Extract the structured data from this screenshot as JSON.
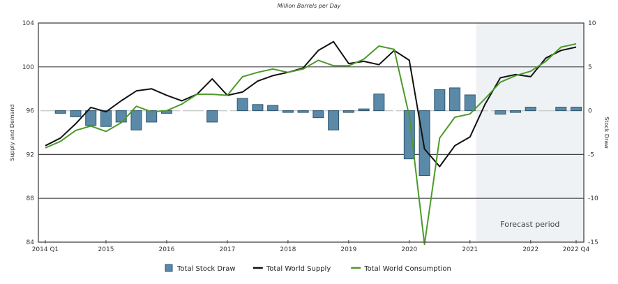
{
  "chart_data": {
    "type": "bar+line",
    "subtitle": "Million Barrels per Day",
    "ylabel_left": "Supply and Demand",
    "ylabel_right": "Stock Draw",
    "ylim_left": [
      84,
      104
    ],
    "ylim_right": [
      -15,
      10
    ],
    "yticks_left": [
      "84",
      "88",
      "92",
      "96",
      "100",
      "104"
    ],
    "yticks_right": [
      "-15",
      "-10",
      "-5",
      "0",
      "5",
      "10"
    ],
    "xtick_labels": [
      "2014 Q1",
      "2015",
      "2016",
      "2017",
      "2018",
      "2019",
      "2020",
      "2021",
      "2022",
      "2022 Q4"
    ],
    "xtick_quarter_index": [
      0,
      4,
      8,
      12,
      16,
      20,
      24,
      28,
      32,
      35
    ],
    "quarters": [
      "2014 Q1",
      "2014 Q2",
      "2014 Q3",
      "2014 Q4",
      "2015 Q1",
      "2015 Q2",
      "2015 Q3",
      "2015 Q4",
      "2016 Q1",
      "2016 Q2",
      "2016 Q3",
      "2016 Q4",
      "2017 Q1",
      "2017 Q2",
      "2017 Q3",
      "2017 Q4",
      "2018 Q1",
      "2018 Q2",
      "2018 Q3",
      "2018 Q4",
      "2019 Q1",
      "2019 Q2",
      "2019 Q3",
      "2019 Q4",
      "2020 Q1",
      "2020 Q2",
      "2020 Q3",
      "2020 Q4",
      "2021 Q1",
      "2021 Q2",
      "2021 Q3",
      "2021 Q4",
      "2022 Q1",
      "2022 Q2",
      "2022 Q3",
      "2022 Q4"
    ],
    "forecast_start_index": 29,
    "forecast_label": "Forecast period",
    "series": [
      {
        "name": "Total Stock Draw",
        "axis": "right",
        "kind": "bar",
        "color": "#5b8aa8",
        "values": [
          0,
          -0.3,
          -0.7,
          -1.7,
          -1.8,
          -1.3,
          -2.2,
          -1.3,
          -0.3,
          0,
          0,
          -1.3,
          0,
          1.4,
          0.7,
          0.6,
          -0.1,
          -0.2,
          -0.8,
          -2.2,
          -0.2,
          0.2,
          1.9,
          0,
          -5.5,
          -7.4,
          2.4,
          2.6,
          1.8,
          0,
          -0.4,
          -0.1,
          0.4,
          0,
          0.4,
          0.4
        ]
      },
      {
        "name": "Total World Supply",
        "axis": "left",
        "kind": "line",
        "color": "#111111",
        "values": [
          92.8,
          93.5,
          94.8,
          96.3,
          95.9,
          96.9,
          97.8,
          98.0,
          97.4,
          96.9,
          97.5,
          98.9,
          97.4,
          97.7,
          98.7,
          99.2,
          99.5,
          99.9,
          101.5,
          102.3,
          100.3,
          100.5,
          100.2,
          101.5,
          100.6,
          92.5,
          90.9,
          92.8,
          93.6,
          96.6,
          99.0,
          99.3,
          99.1,
          100.8,
          101.5,
          101.8
        ]
      },
      {
        "name": "Total World Consumption",
        "axis": "left",
        "kind": "line",
        "color": "#4c9a2a",
        "values": [
          92.6,
          93.2,
          94.2,
          94.6,
          94.1,
          94.9,
          96.4,
          95.9,
          96.0,
          96.6,
          97.5,
          97.5,
          97.4,
          99.1,
          99.5,
          99.8,
          99.5,
          99.8,
          100.6,
          100.1,
          100.1,
          100.7,
          101.9,
          101.6,
          95.5,
          83.8,
          93.5,
          95.4,
          95.7,
          97.1,
          98.6,
          99.2,
          99.6,
          100.5,
          101.8,
          102.1
        ]
      }
    ],
    "legend": [
      "Total Stock Draw",
      "Total World Supply",
      "Total World Consumption"
    ],
    "legend_position": "bottom",
    "grid": "horizontal",
    "colors": {
      "forecast_bg": "#eef2f5",
      "zero_line": "#cccccc",
      "grid": "#444444",
      "bar_stroke": "#2f5670"
    }
  }
}
